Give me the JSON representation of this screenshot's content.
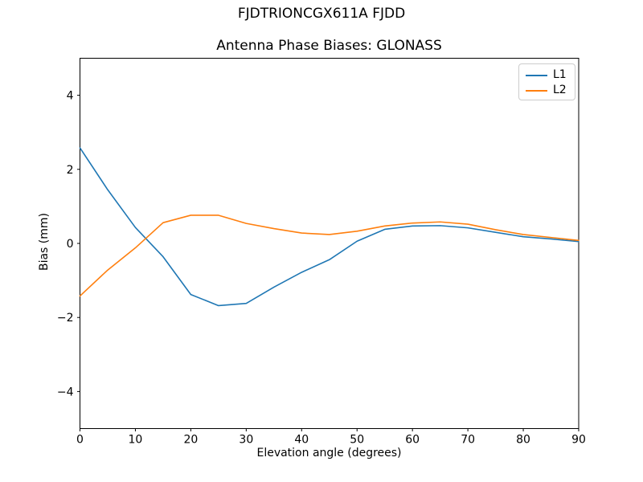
{
  "figure": {
    "suptitle": "FJDTRIONCGX611A FJDD",
    "background": "#ffffff",
    "text_color": "#000000",
    "axis_color": "#000000"
  },
  "chart_data": {
    "type": "line",
    "title": "Antenna Phase Biases: GLONASS",
    "xlabel": "Elevation angle (degrees)",
    "ylabel": "Bias (mm)",
    "xlim": [
      0,
      90
    ],
    "ylim": [
      -5,
      5
    ],
    "xticks": [
      0,
      10,
      20,
      30,
      40,
      50,
      60,
      70,
      80,
      90
    ],
    "xtick_labels": [
      "0",
      "10",
      "20",
      "30",
      "40",
      "50",
      "60",
      "70",
      "80",
      "90"
    ],
    "yticks": [
      -4,
      -2,
      0,
      2,
      4
    ],
    "ytick_labels": [
      "−4",
      "−2",
      "0",
      "2",
      "4"
    ],
    "grid": false,
    "legend_position": "upper right",
    "legend_border_color": "#cccccc",
    "x": [
      0,
      5,
      10,
      15,
      20,
      25,
      30,
      35,
      40,
      45,
      50,
      55,
      60,
      65,
      70,
      75,
      80,
      85,
      90
    ],
    "series": [
      {
        "name": "L1",
        "color": "#1f77b4",
        "values": [
          2.58,
          1.45,
          0.43,
          -0.36,
          -1.38,
          -1.68,
          -1.62,
          -1.18,
          -0.78,
          -0.44,
          0.06,
          0.38,
          0.47,
          0.48,
          0.42,
          0.3,
          0.18,
          0.12,
          0.05
        ]
      },
      {
        "name": "L2",
        "color": "#ff7f0e",
        "values": [
          -1.42,
          -0.72,
          -0.12,
          0.56,
          0.76,
          0.76,
          0.54,
          0.4,
          0.28,
          0.24,
          0.33,
          0.47,
          0.55,
          0.58,
          0.52,
          0.37,
          0.24,
          0.16,
          0.08
        ]
      }
    ]
  }
}
